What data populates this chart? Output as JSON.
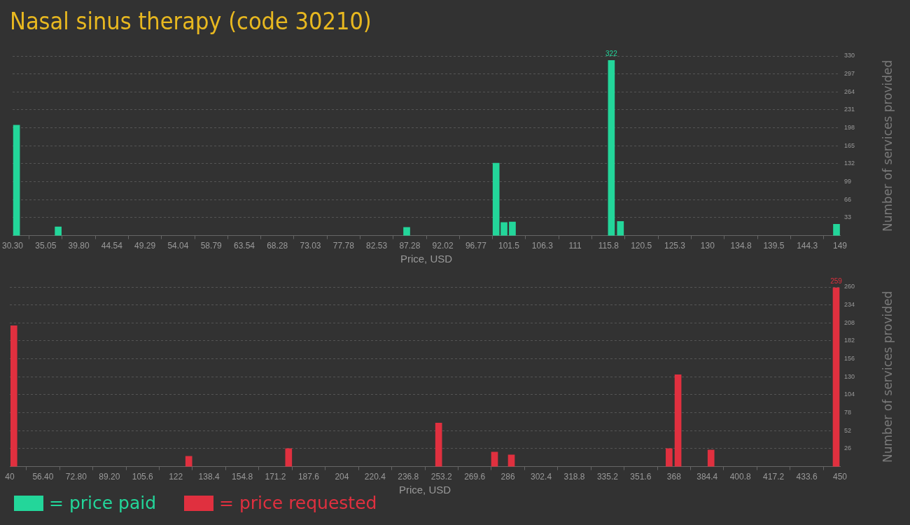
{
  "chart_data": [
    {
      "type": "bar",
      "title": "Nasal sinus therapy (code 30210)",
      "xlabel": "Price, USD",
      "ylabel": "Number of services provided",
      "x": [
        30.86,
        36.84,
        86.84,
        99.66,
        100.8,
        102.0,
        116.2,
        117.5,
        148.5
      ],
      "series": [
        {
          "name": "= price paid",
          "color": "#23d69a",
          "values": [
            203,
            16,
            15,
            133,
            24,
            25,
            322,
            26,
            21
          ],
          "value_labels": [
            null,
            null,
            null,
            null,
            null,
            null,
            "322",
            null,
            null
          ]
        }
      ],
      "xlim": [
        30.3,
        149
      ],
      "xticks": [
        {
          "value": 30.3,
          "label": "30.30"
        },
        35.05,
        {
          "value": 39.8,
          "label": "39.80"
        },
        44.54,
        49.29,
        54.04,
        58.79,
        63.54,
        68.28,
        73.03,
        77.78,
        82.53,
        87.28,
        92.02,
        96.77,
        101.5,
        106.3,
        111,
        115.8,
        120.5,
        125.3,
        130,
        134.8,
        139.5,
        144.3,
        149
      ],
      "ylim": [
        0,
        330
      ],
      "yticks": [
        33,
        66,
        99,
        132,
        165,
        198,
        231,
        264,
        297,
        330
      ],
      "grid": "y",
      "legend": "bottom left"
    },
    {
      "type": "bar",
      "xlabel": "Price, USD",
      "ylabel": "Number of services provided",
      "x": [
        42,
        128.4,
        177.7,
        251.8,
        279.4,
        287.7,
        365.6,
        370.0,
        386.3,
        448.1
      ],
      "series": [
        {
          "name": "= price requested",
          "color": "#e0303f",
          "values": [
            204,
            15,
            26,
            63,
            21,
            17,
            26,
            133,
            24,
            259
          ],
          "value_labels": [
            null,
            null,
            null,
            null,
            null,
            null,
            null,
            null,
            null,
            "259"
          ]
        }
      ],
      "xlim": [
        40,
        450
      ],
      "xticks": [
        40,
        {
          "value": 56.4,
          "label": "56.40"
        },
        {
          "value": 72.8,
          "label": "72.80"
        },
        {
          "value": 89.2,
          "label": "89.20"
        },
        105.6,
        122,
        138.4,
        154.8,
        171.2,
        187.6,
        204,
        220.4,
        236.8,
        253.2,
        269.6,
        286,
        302.4,
        318.8,
        335.2,
        351.6,
        368,
        384.4,
        400.8,
        417.2,
        433.6,
        450
      ],
      "ylim": [
        0,
        260
      ],
      "yticks": [
        26,
        52,
        78,
        104,
        130,
        156,
        182,
        208,
        234,
        260
      ],
      "grid": "y",
      "legend": "bottom left"
    }
  ]
}
